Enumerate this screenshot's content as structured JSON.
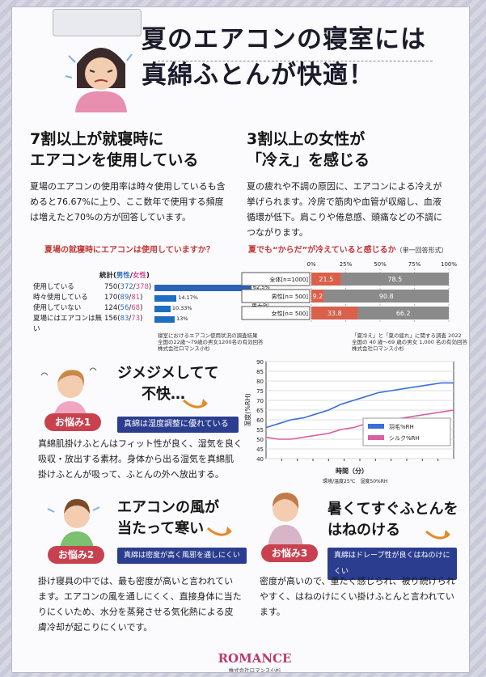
{
  "title": {
    "line1": "夏のエアコンの寝室には",
    "line2": "真綿ふとんが快適！"
  },
  "left_section": {
    "heading1": "7割以上が就寝時に",
    "heading2": "エアコンを使用している",
    "para1": "夏場のエアコンの使用率は時々使用しているも含",
    "para2": "めると76.67%に上り、ここ数年で使用する頻度",
    "para3": "は増えたと70%の方が回答しています。",
    "question": "夏場の就寝時にエアコンは使用していますか？",
    "stats_header_a": "統計(",
    "stats_header_b": "男性",
    "stats_header_c": "/",
    "stats_header_d": "女性",
    "stats_header_e": ")",
    "rows": [
      {
        "label": "使用している",
        "total": "750",
        "male": "372",
        "female": "378",
        "pct": "62.5%",
        "value": 62.5
      },
      {
        "label": "時々使用している",
        "total": "170",
        "male": "89",
        "female": "81",
        "pct": "14.17%",
        "value": 14.17
      },
      {
        "label": "使用していない",
        "total": "124",
        "male": "56",
        "female": "68",
        "pct": "10.33%",
        "value": 10.33
      },
      {
        "label": "夏場にはエアコンは無い",
        "total": "156",
        "male": "83",
        "female": "73",
        "pct": "13%",
        "value": 13
      }
    ],
    "source1": "寝室におけるエアコン使用状況の調査結果",
    "source2": "全国の22歳〜79歳の男女1200名の有効回答",
    "source3": "株式会社ロマンス小杉"
  },
  "right_section": {
    "heading1": "3割以上の女性が",
    "heading2": "「冷え」を感じる",
    "para1": "夏の疲れや不調の原因に、エアコンによる冷えが",
    "para2": "挙げられます。冷房で筋肉や血管が収縮し、血液",
    "para3": "循環が低下。肩こりや倦怠感、頭痛などの不調に",
    "para4": "つながります。",
    "question_a": "夏でも“からだ”が冷えていると感じるか",
    "question_b": "（単一回答形式）",
    "axis": [
      "0%",
      "25%",
      "50%",
      "75%",
      "100%"
    ],
    "group_label": "男女別",
    "rows": [
      {
        "label": "全体[n=1000]",
        "a": "21.5",
        "b": "78.5",
        "va": 21.5,
        "vb": 78.5
      },
      {
        "label": "男性[n= 500]",
        "a": "9.2",
        "b": "90.8",
        "va": 9.2,
        "vb": 90.8
      },
      {
        "label": "女性[n= 500]",
        "a": "33.8",
        "b": "66.2",
        "va": 33.8,
        "vb": 66.2
      }
    ],
    "source1": "「夏冷え」と「夏の疲れ」に関する調査 2022",
    "source2": "全国の 40 歳〜69 歳の男女 1,000 名の有効回答",
    "source3": "株式会社ロマンス小杉"
  },
  "chart_data": {
    "type": "line",
    "ylabel": "湿度(%RH)",
    "xlabel": "時間（分）",
    "yticks": [
      40,
      45,
      50,
      55,
      60,
      65,
      70,
      75,
      80,
      85,
      90
    ],
    "ylim": [
      40,
      90
    ],
    "legend": [
      {
        "name": "羽毛%RH",
        "color": "#3b6fd6"
      },
      {
        "name": "シルク%RH",
        "color": "#d95fa6"
      }
    ],
    "series": [
      {
        "name": "羽毛%RH",
        "values": [
          56,
          58,
          60,
          61,
          63,
          65,
          68,
          70,
          72,
          74,
          75,
          76,
          77,
          78,
          79,
          79
        ]
      },
      {
        "name": "シルク%RH",
        "values": [
          51,
          50,
          50,
          51,
          52,
          53,
          55,
          56,
          58,
          59,
          60,
          61,
          62,
          63,
          64,
          65
        ]
      }
    ],
    "note1": "環境/温度25℃　湿度50%RH",
    "note2": "(株)ロマンス小杉 人間環境・睡眠科学研究所 調べ"
  },
  "worry1": {
    "heading1": "ジメジメしてて",
    "heading2": "不快…",
    "badge": "お悩み1",
    "ribbon": "真綿は湿度調整に優れている",
    "para1": "真綿肌掛けふとんはフィット性が良く、湿気を良く",
    "para2": "吸収・放出する素材。身体から出る湿気を真綿肌",
    "para3": "掛けふとんが吸って、ふとんの外へ放出する。"
  },
  "worry2": {
    "heading1": "エアコンの風が",
    "heading2": "当たって寒い",
    "badge": "お悩み2",
    "ribbon": "真綿は密度が高く風邪を通しにくい",
    "para1": "掛け寝具の中では、最も密度が高いと言われてい",
    "para2": "ます。エアコンの風を通しにくく、直接身体に当た",
    "para3": "りにくいため、水分を蒸発させる気化熱による皮",
    "para4": "膚冷却が起こりにくいです。"
  },
  "worry3": {
    "heading1": "暑くてすぐふとんを",
    "heading2": "はねのける",
    "badge": "お悩み3",
    "ribbon": "真綿はドレープ性が良くはねのけにくい",
    "para1": "密度が高いので、重たく感じられ、被り続けられ",
    "para2": "やすく、はねのけにくい掛けふとんと言われてい",
    "para3": "ます。"
  },
  "footer": {
    "logo": "ROMANCE",
    "company": "株式会社ロマンス小杉"
  },
  "colors": {
    "navy": "#2b3d8f",
    "red": "#c9414f",
    "blue_bar": "#2a63b8",
    "gray_bar": "#8a8a8a",
    "salmon": "#d9604a"
  }
}
